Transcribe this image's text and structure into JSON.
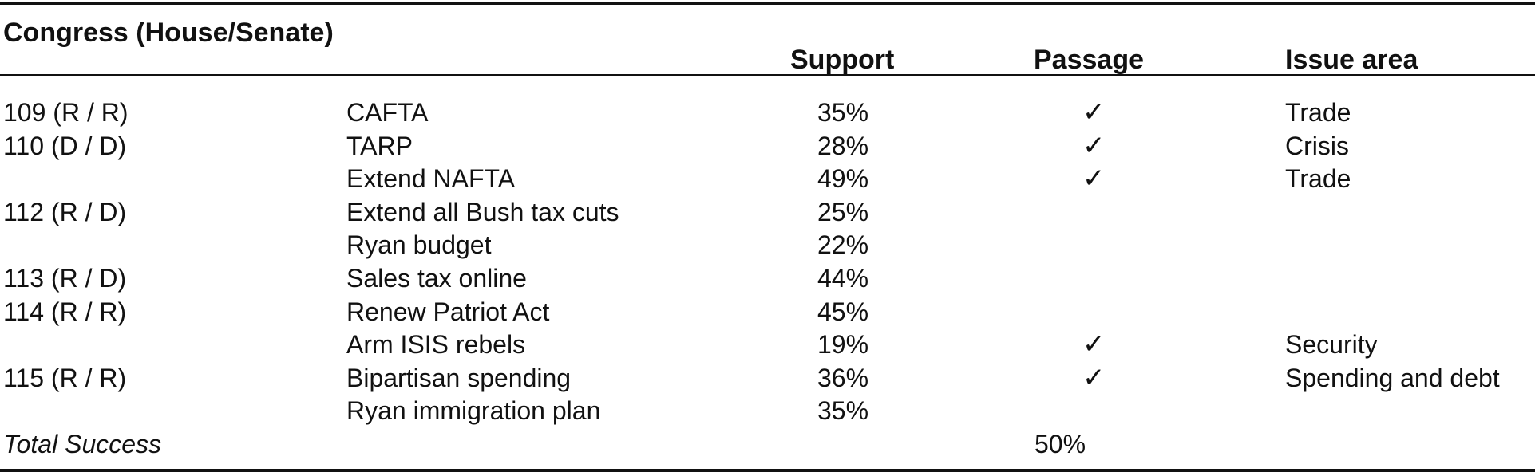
{
  "headers": {
    "congress": "Congress (House/Senate)",
    "support": "Support",
    "passage": "Passage",
    "issue_area": "Issue area"
  },
  "rows": [
    {
      "congress": "109 (R / R)",
      "bill": "CAFTA",
      "support": "35%",
      "passage": "✓",
      "issue": "Trade"
    },
    {
      "congress": "110 (D / D)",
      "bill": "TARP",
      "support": "28%",
      "passage": "✓",
      "issue": "Crisis"
    },
    {
      "congress": "",
      "bill": "Extend NAFTA",
      "support": "49%",
      "passage": "✓",
      "issue": "Trade"
    },
    {
      "congress": "112 (R / D)",
      "bill": "Extend all Bush tax cuts",
      "support": "25%",
      "passage": "",
      "issue": ""
    },
    {
      "congress": "",
      "bill": "Ryan budget",
      "support": "22%",
      "passage": "",
      "issue": ""
    },
    {
      "congress": "113 (R / D)",
      "bill": "Sales tax online",
      "support": "44%",
      "passage": "",
      "issue": ""
    },
    {
      "congress": "114 (R / R)",
      "bill": "Renew Patriot Act",
      "support": "45%",
      "passage": "",
      "issue": ""
    },
    {
      "congress": "",
      "bill": "Arm ISIS rebels",
      "support": "19%",
      "passage": "✓",
      "issue": "Security"
    },
    {
      "congress": "115 (R / R)",
      "bill": "Bipartisan spending",
      "support": "36%",
      "passage": "✓",
      "issue": "Spending and debt"
    },
    {
      "congress": "",
      "bill": "Ryan immigration plan",
      "support": "35%",
      "passage": "",
      "issue": ""
    }
  ],
  "total": {
    "label": "Total Success",
    "value": "50%"
  }
}
